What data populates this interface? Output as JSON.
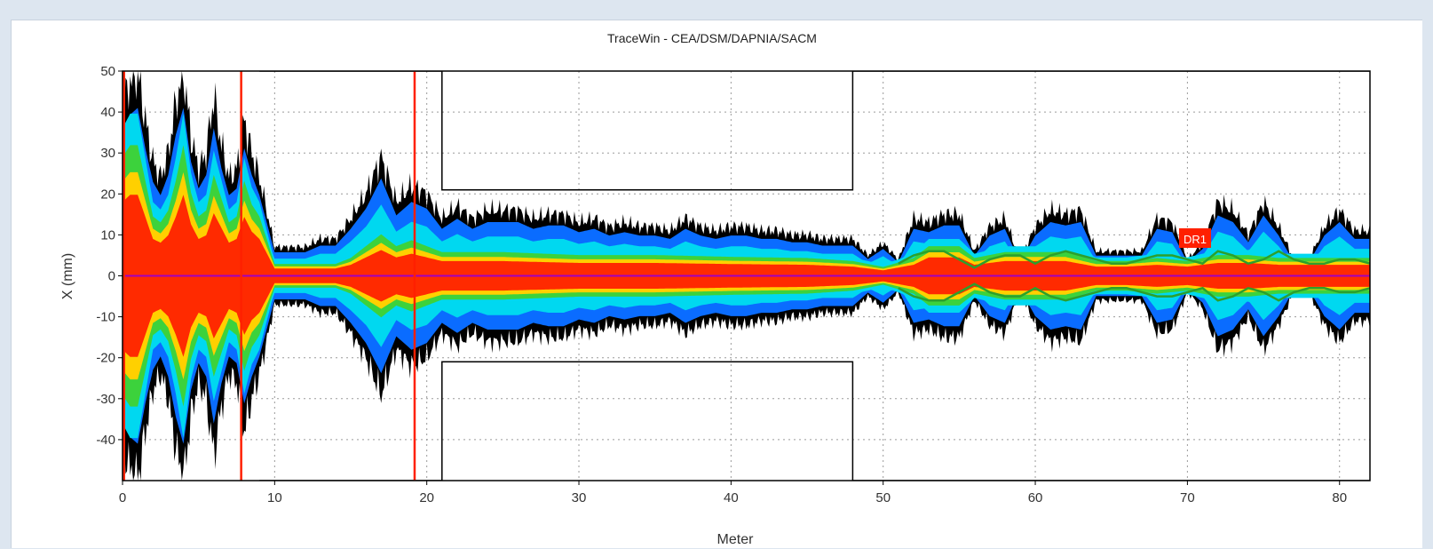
{
  "colors": {
    "window_background": "#dde6f0",
    "plot_background": "#ffffff",
    "beam_core": "#ff2a00",
    "beam_inner": "#ffd000",
    "beam_green": "#3cd23c",
    "beam_cyan": "#00d8f0",
    "beam_blue": "#0a6cff",
    "beam_halo": "#000000",
    "aperture_line": "#000000",
    "marker_red": "#ff2000",
    "reference_line": "#a000c0",
    "envelope_green": "#2ca02c"
  },
  "chart_data": {
    "type": "area",
    "title": "TraceWin - CEA/DSM/DAPNIA/SACM",
    "xlabel": "Meter",
    "ylabel": "X (mm)",
    "xlim": [
      0,
      82
    ],
    "ylim": [
      -50,
      50
    ],
    "xticks": [
      0,
      10,
      20,
      30,
      40,
      50,
      60,
      70,
      80
    ],
    "yticks": [
      50,
      40,
      30,
      20,
      10,
      0,
      -10,
      -20,
      -30,
      -40
    ],
    "grid": true,
    "grid_style": "dotted",
    "legend": "none",
    "annotations": [
      {
        "text": "DR1",
        "x": 70.5,
        "y": 9
      }
    ],
    "reference_line_y": 0,
    "red_markers_x": [
      0.1,
      7.8,
      19.2
    ],
    "beam_halo_envelope": {
      "x": [
        0,
        0.5,
        1,
        1.5,
        2,
        2.5,
        3,
        3.5,
        4,
        4.5,
        5,
        5.5,
        6,
        6.5,
        7,
        7.5,
        8,
        8.5,
        9,
        10,
        11,
        12,
        13,
        14,
        15,
        16,
        17,
        18,
        19,
        20,
        21,
        22,
        23,
        24,
        25,
        26,
        27,
        28,
        29,
        30,
        31,
        32,
        33,
        34,
        35,
        36,
        37,
        38,
        39,
        40,
        41,
        42,
        43,
        44,
        45,
        46,
        47,
        48,
        49,
        50,
        51,
        52,
        53,
        54,
        55,
        56,
        57,
        58,
        59,
        60,
        61,
        62,
        63,
        64,
        65,
        66,
        67,
        68,
        69,
        70,
        71,
        72,
        73,
        74,
        75,
        76,
        77,
        78,
        79,
        80,
        81,
        82
      ],
      "y": [
        40,
        48,
        50,
        38,
        28,
        24,
        30,
        42,
        50,
        34,
        26,
        30,
        44,
        32,
        24,
        26,
        38,
        30,
        24,
        7,
        7,
        7,
        9,
        9,
        14,
        20,
        29,
        18,
        22,
        20,
        14,
        17,
        14,
        16,
        16,
        16,
        14,
        15,
        15,
        13,
        14,
        12,
        13,
        12,
        12,
        11,
        14,
        12,
        11,
        12,
        12,
        11,
        11,
        10,
        10,
        9,
        9,
        9,
        5,
        8,
        4,
        14,
        13,
        15,
        15,
        6,
        12,
        14,
        4,
        12,
        16,
        15,
        16,
        6,
        6,
        6,
        6,
        14,
        13,
        4,
        8,
        18,
        16,
        10,
        18,
        12,
        4,
        4,
        12,
        16,
        11,
        11
      ]
    },
    "beam_core_envelope": {
      "x": [
        0,
        0.5,
        1,
        1.5,
        2,
        2.5,
        3,
        3.5,
        4,
        4.5,
        5,
        5.5,
        6,
        6.5,
        7,
        7.5,
        8,
        8.5,
        9,
        10,
        14,
        15,
        16,
        17,
        18,
        19,
        20,
        21,
        25,
        30,
        35,
        40,
        45,
        48,
        50,
        52,
        53,
        55,
        56,
        58,
        60,
        62,
        64,
        66,
        68,
        70,
        72,
        74,
        76,
        78,
        80,
        82
      ],
      "y": [
        20,
        22,
        22,
        16,
        10,
        9,
        11,
        16,
        22,
        14,
        10,
        11,
        17,
        13,
        9,
        10,
        16,
        12,
        10,
        2,
        2,
        3,
        5,
        7,
        5,
        6,
        5,
        4,
        4,
        3.5,
        3.5,
        3.2,
        3,
        2.5,
        1.5,
        3,
        5,
        5,
        3,
        4,
        4,
        4,
        2.5,
        2.5,
        3,
        2.5,
        3.5,
        3.5,
        3,
        3,
        3,
        3
      ]
    },
    "aperture_upper": {
      "x": [
        9,
        14,
        14,
        21,
        21,
        48,
        48,
        82
      ],
      "y": [
        50,
        50,
        50,
        50,
        21,
        21,
        50,
        50
      ]
    },
    "aperture_lower": {
      "x": [
        9,
        14,
        14,
        21,
        21,
        48,
        48,
        82
      ],
      "y": [
        -50,
        -50,
        -50,
        -50,
        -21,
        -21,
        -50,
        -50
      ]
    },
    "envelope_rms_upper": {
      "x": [
        51,
        52,
        53,
        54,
        55,
        56,
        57,
        58,
        59,
        60,
        61,
        62,
        63,
        64,
        65,
        66,
        67,
        68,
        69,
        70,
        71,
        72,
        73,
        74,
        75,
        76,
        77,
        78,
        79,
        80,
        81,
        82
      ],
      "y": [
        3,
        5,
        6,
        6,
        4,
        2,
        4,
        5,
        5,
        3,
        5,
        6,
        5,
        4,
        3,
        3,
        4,
        5,
        5,
        4,
        3,
        6,
        5,
        3,
        4,
        6,
        4,
        3,
        3,
        4,
        4,
        3
      ]
    },
    "envelope_rms_lower": {
      "x": [
        51,
        52,
        53,
        54,
        55,
        56,
        57,
        58,
        59,
        60,
        61,
        62,
        63,
        64,
        65,
        66,
        67,
        68,
        69,
        70,
        71,
        72,
        73,
        74,
        75,
        76,
        77,
        78,
        79,
        80,
        81,
        82
      ],
      "y": [
        -3,
        -5,
        -6,
        -6,
        -4,
        -2,
        -4,
        -5,
        -5,
        -3,
        -5,
        -6,
        -5,
        -4,
        -3,
        -3,
        -4,
        -5,
        -5,
        -4,
        -3,
        -6,
        -5,
        -3,
        -4,
        -6,
        -4,
        -3,
        -3,
        -4,
        -4,
        -3
      ]
    }
  }
}
